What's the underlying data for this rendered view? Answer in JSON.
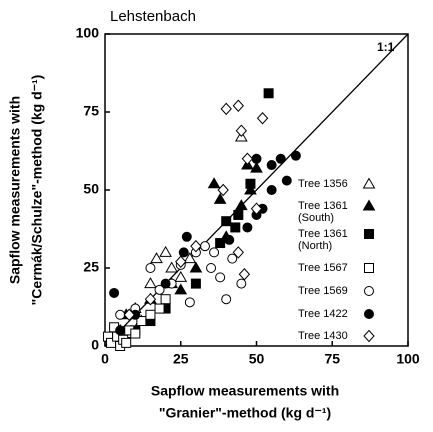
{
  "chart_data": {
    "type": "scatter",
    "title": "Lehstenbach",
    "annotation": "1:1",
    "x_label": [
      "Sapflow measurements with",
      "\"Granier\"-method (kg d⁻¹)"
    ],
    "y_label": [
      "Sapflow measurements with",
      "\"Cermák/Schulze\"-method (kg d⁻¹)"
    ],
    "xlim": [
      0,
      100
    ],
    "ylim": [
      0,
      100
    ],
    "xticks": [
      0,
      25,
      50,
      75,
      100
    ],
    "yticks": [
      0,
      25,
      50,
      75,
      100
    ],
    "series": [
      {
        "name": "Tree 1356",
        "marker": "triangle-open",
        "x": [
          5,
          8,
          10,
          12,
          15,
          17,
          20,
          22,
          25,
          28,
          45
        ],
        "values": [
          5,
          4,
          12,
          8,
          20,
          28,
          30,
          25,
          22,
          28,
          67
        ]
      },
      {
        "name": "Tree 1361\n(South)",
        "marker": "triangle-filled",
        "x": [
          7,
          15,
          22,
          25,
          30,
          36,
          38,
          40,
          45,
          47,
          48,
          50
        ],
        "values": [
          10,
          15,
          20,
          18,
          25,
          52,
          47,
          35,
          45,
          58,
          50,
          57
        ]
      },
      {
        "name": "Tree 1361\n(North)",
        "marker": "square-filled",
        "x": [
          10,
          15,
          20,
          30,
          38,
          40,
          43,
          44,
          48,
          54
        ],
        "values": [
          5,
          8,
          12,
          20,
          33,
          40,
          38,
          42,
          52,
          81
        ]
      },
      {
        "name": "Tree 1567",
        "marker": "square-open",
        "x": [
          1,
          2,
          3,
          4,
          5,
          6,
          7,
          8,
          10,
          12,
          15,
          18,
          20
        ],
        "values": [
          3,
          1,
          6,
          3,
          0,
          2,
          1,
          5,
          4,
          8,
          10,
          12,
          15
        ]
      },
      {
        "name": "Tree 1569",
        "marker": "circle-open",
        "x": [
          5,
          10,
          15,
          18,
          22,
          25,
          28,
          30,
          33,
          35,
          36,
          38,
          40,
          42,
          45
        ],
        "values": [
          10,
          12,
          25,
          18,
          20,
          26,
          14,
          30,
          32,
          25,
          30,
          22,
          15,
          28,
          20
        ]
      },
      {
        "name": "Tree 1422",
        "marker": "circle-filled",
        "x": [
          3,
          5,
          10,
          20,
          26,
          27,
          41,
          47,
          50,
          50,
          52,
          55,
          55,
          58,
          60,
          63
        ],
        "values": [
          17,
          5,
          10,
          20,
          30,
          35,
          34,
          38,
          42,
          60,
          44,
          50,
          58,
          60,
          53,
          61
        ]
      },
      {
        "name": "Tree 1430",
        "marker": "diamond-open",
        "x": [
          8,
          15,
          25,
          30,
          39,
          40,
          44,
          44,
          45,
          46,
          47,
          50,
          52
        ],
        "values": [
          10,
          15,
          27,
          32,
          50,
          76,
          77,
          30,
          69,
          23,
          60,
          44,
          73
        ]
      }
    ]
  }
}
